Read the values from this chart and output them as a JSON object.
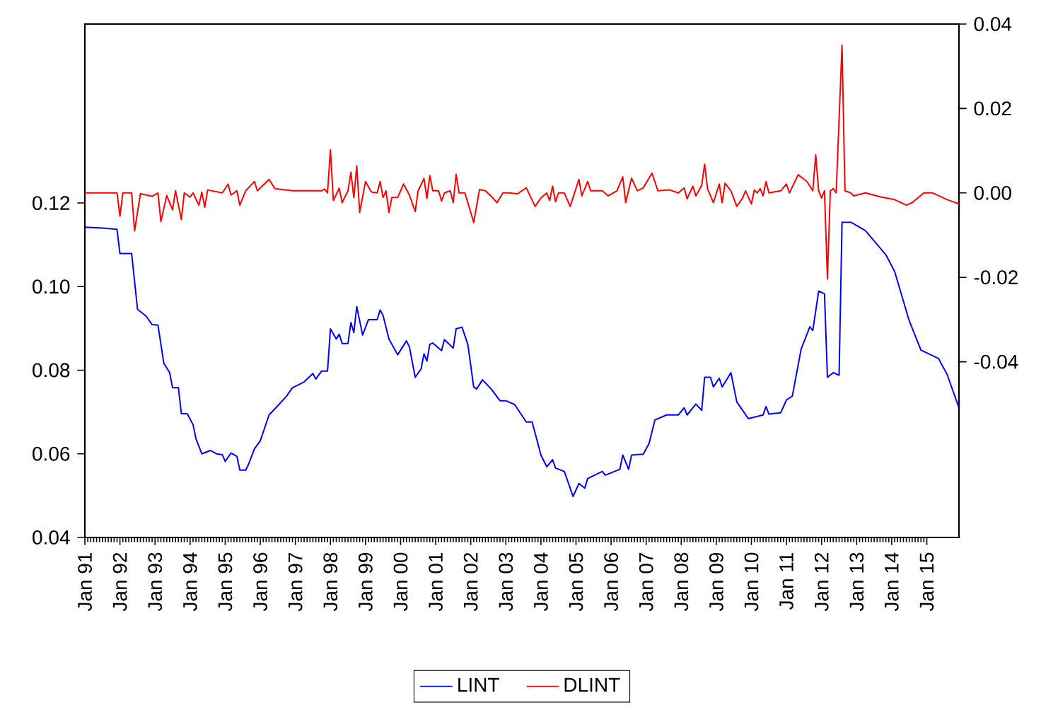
{
  "chart_data": {
    "type": "line",
    "xlim": [
      "1991-01",
      "2015-12"
    ],
    "xticks": [
      {
        "value": "1991-01",
        "label": "Jan 91"
      },
      {
        "value": "1992-01",
        "label": "Jan 92"
      },
      {
        "value": "1993-01",
        "label": "Jan 93"
      },
      {
        "value": "1994-01",
        "label": "Jan 94"
      },
      {
        "value": "1995-01",
        "label": "Jan 95"
      },
      {
        "value": "1996-01",
        "label": "Jan 96"
      },
      {
        "value": "1997-01",
        "label": "Jan 97"
      },
      {
        "value": "1998-01",
        "label": "Jan 98"
      },
      {
        "value": "1999-01",
        "label": "Jan 99"
      },
      {
        "value": "2000-01",
        "label": "Jan 00"
      },
      {
        "value": "2001-01",
        "label": "Jan 01"
      },
      {
        "value": "2002-01",
        "label": "Jan 02"
      },
      {
        "value": "2003-01",
        "label": "Jan 03"
      },
      {
        "value": "2004-01",
        "label": "Jan 04"
      },
      {
        "value": "2005-01",
        "label": "Jan 05"
      },
      {
        "value": "2006-01",
        "label": "Jan 06"
      },
      {
        "value": "2007-01",
        "label": "Jan 07"
      },
      {
        "value": "2008-01",
        "label": "Jan 08"
      },
      {
        "value": "2009-01",
        "label": "Jan 09"
      },
      {
        "value": "2010-01",
        "label": "Jan 10"
      },
      {
        "value": "2011-01",
        "label": "Jan 11"
      },
      {
        "value": "2012-01",
        "label": "Jan 12"
      },
      {
        "value": "2013-01",
        "label": "Jan 13"
      },
      {
        "value": "2014-01",
        "label": "Jan 14"
      },
      {
        "value": "2015-01",
        "label": "Jan 15"
      }
    ],
    "ylim": [
      0.04,
      0.1628
    ],
    "yticks": [
      {
        "value": 0.04,
        "label": "0.04"
      },
      {
        "value": 0.06,
        "label": "0.06"
      },
      {
        "value": 0.08,
        "label": "0.08"
      },
      {
        "value": 0.1,
        "label": "0.10"
      },
      {
        "value": 0.12,
        "label": "0.12"
      }
    ],
    "y2lim": [
      -0.0816,
      0.04
    ],
    "y2ticks": [
      {
        "value": -0.04,
        "label": "-0.04"
      },
      {
        "value": -0.02,
        "label": "-0.02"
      },
      {
        "value": 0,
        "label": "0.00"
      },
      {
        "value": 0.02,
        "label": "0.02"
      },
      {
        "value": 0.04,
        "label": "0.04"
      }
    ],
    "legend": "bottom",
    "series": [
      {
        "name": "LINT",
        "color": "#0000ff",
        "x": [
          "1991-01",
          "1991-07",
          "1991-12",
          "1992-01",
          "1992-05",
          "1992-07",
          "1992-10",
          "1992-12",
          "1993-02",
          "1993-04",
          "1993-06",
          "1993-07",
          "1993-09",
          "1993-10",
          "1993-12",
          "1994-02",
          "1994-03",
          "1994-05",
          "1994-08",
          "1994-10",
          "1994-12",
          "1995-01",
          "1995-03",
          "1995-05",
          "1995-06",
          "1995-08",
          "1995-09",
          "1995-11",
          "1996-01",
          "1996-04",
          "1996-07",
          "1996-10",
          "1996-12",
          "1997-04",
          "1997-07",
          "1997-08",
          "1997-10",
          "1997-12",
          "1998-01",
          "1998-03",
          "1998-04",
          "1998-05",
          "1998-07",
          "1998-08",
          "1998-09",
          "1998-10",
          "1998-12",
          "1999-02",
          "1999-05",
          "1999-06",
          "1999-07",
          "1999-09",
          "1999-12",
          "2000-03",
          "2000-04",
          "2000-06",
          "2000-08",
          "2000-09",
          "2000-10",
          "2000-11",
          "2000-12",
          "2001-03",
          "2001-04",
          "2001-07",
          "2001-08",
          "2001-10",
          "2001-12",
          "2002-02",
          "2002-03",
          "2002-05",
          "2002-08",
          "2002-11",
          "2003-01",
          "2003-02",
          "2003-04",
          "2003-08",
          "2003-10",
          "2004-01",
          "2004-03",
          "2004-05",
          "2004-06",
          "2004-09",
          "2004-12",
          "2005-02",
          "2005-04",
          "2005-05",
          "2005-10",
          "2005-11",
          "2006-04",
          "2006-05",
          "2006-07",
          "2006-08",
          "2006-12",
          "2007-02",
          "2007-04",
          "2007-08",
          "2007-12",
          "2008-02",
          "2008-03",
          "2008-06",
          "2008-08",
          "2008-09",
          "2008-11",
          "2008-12",
          "2009-02",
          "2009-03",
          "2009-06",
          "2009-08",
          "2009-12",
          "2010-05",
          "2010-06",
          "2010-07",
          "2010-11",
          "2011-01",
          "2011-03",
          "2011-06",
          "2011-09",
          "2011-10",
          "2011-12",
          "2012-02",
          "2012-03",
          "2012-05",
          "2012-07",
          "2012-08",
          "2012-11",
          "2013-04",
          "2013-11",
          "2014-02",
          "2014-07",
          "2014-11",
          "2015-05",
          "2015-08",
          "2015-12"
        ],
        "values": [
          0.1142,
          0.114,
          0.1137,
          0.1079,
          0.1079,
          0.0946,
          0.0929,
          0.0909,
          0.0908,
          0.0817,
          0.0794,
          0.0758,
          0.0758,
          0.0696,
          0.0696,
          0.067,
          0.0636,
          0.06,
          0.0608,
          0.06,
          0.0598,
          0.0582,
          0.0602,
          0.0594,
          0.0561,
          0.0561,
          0.0575,
          0.0612,
          0.0631,
          0.0693,
          0.0715,
          0.0738,
          0.0758,
          0.0772,
          0.0792,
          0.0779,
          0.0798,
          0.0798,
          0.0899,
          0.0875,
          0.0886,
          0.0864,
          0.0864,
          0.0914,
          0.089,
          0.0952,
          0.0884,
          0.0921,
          0.0921,
          0.0944,
          0.0931,
          0.0875,
          0.0837,
          0.087,
          0.0856,
          0.0783,
          0.0803,
          0.0839,
          0.0822,
          0.0862,
          0.0865,
          0.0847,
          0.0873,
          0.0853,
          0.0899,
          0.0903,
          0.0862,
          0.076,
          0.0755,
          0.0777,
          0.0755,
          0.0727,
          0.0727,
          0.0724,
          0.0718,
          0.0676,
          0.0676,
          0.0597,
          0.0569,
          0.0586,
          0.0566,
          0.0558,
          0.0498,
          0.0529,
          0.0518,
          0.0541,
          0.0558,
          0.0549,
          0.0563,
          0.0597,
          0.0563,
          0.0597,
          0.0599,
          0.0625,
          0.0681,
          0.0693,
          0.0693,
          0.071,
          0.0693,
          0.0719,
          0.0704,
          0.0783,
          0.0783,
          0.076,
          0.0781,
          0.076,
          0.0794,
          0.0724,
          0.0684,
          0.0693,
          0.0713,
          0.0695,
          0.0698,
          0.0729,
          0.0738,
          0.085,
          0.0904,
          0.0895,
          0.0989,
          0.0983,
          0.0783,
          0.0794,
          0.0788,
          0.1154,
          0.1154,
          0.1134,
          0.1076,
          0.1036,
          0.0918,
          0.0848,
          0.0828,
          0.0789,
          0.071
        ]
      },
      {
        "name": "DLINT",
        "color": "#ff0000",
        "axis": "y2",
        "x": [
          "1991-01",
          "1991-12",
          "1992-01",
          "1992-02",
          "1992-05",
          "1992-06",
          "1992-08",
          "1992-12",
          "1993-02",
          "1993-03",
          "1993-05",
          "1993-07",
          "1993-08",
          "1993-10",
          "1993-11",
          "1994-01",
          "1994-02",
          "1994-04",
          "1994-05",
          "1994-06",
          "1994-07",
          "1994-12",
          "1995-02",
          "1995-03",
          "1995-05",
          "1995-06",
          "1995-08",
          "1995-11",
          "1995-12",
          "1996-04",
          "1996-06",
          "1996-12",
          "1997-10",
          "1997-11",
          "1997-12",
          "1998-01",
          "1998-02",
          "1998-04",
          "1998-05",
          "1998-07",
          "1998-08",
          "1998-09",
          "1998-10",
          "1998-11",
          "1999-01",
          "1999-03",
          "1999-05",
          "1999-06",
          "1999-07",
          "1999-08",
          "1999-09",
          "1999-10",
          "1999-12",
          "2000-02",
          "2000-04",
          "2000-06",
          "2000-07",
          "2000-09",
          "2000-10",
          "2000-11",
          "2000-12",
          "2001-02",
          "2001-03",
          "2001-04",
          "2001-06",
          "2001-07",
          "2001-08",
          "2001-09",
          "2001-11",
          "2001-12",
          "2002-02",
          "2002-04",
          "2002-06",
          "2002-08",
          "2002-10",
          "2002-12",
          "2003-02",
          "2003-05",
          "2003-08",
          "2003-11",
          "2004-01",
          "2004-03",
          "2004-04",
          "2004-05",
          "2004-06",
          "2004-07",
          "2004-09",
          "2004-11",
          "2005-02",
          "2005-03",
          "2005-05",
          "2005-06",
          "2005-10",
          "2005-12",
          "2006-03",
          "2006-05",
          "2006-06",
          "2006-08",
          "2006-10",
          "2006-12",
          "2007-03",
          "2007-05",
          "2007-09",
          "2007-12",
          "2008-02",
          "2008-03",
          "2008-05",
          "2008-06",
          "2008-08",
          "2008-09",
          "2008-10",
          "2008-12",
          "2009-02",
          "2009-03",
          "2009-04",
          "2009-06",
          "2009-08",
          "2009-10",
          "2009-11",
          "2010-01",
          "2010-02",
          "2010-03",
          "2010-04",
          "2010-05",
          "2010-06",
          "2010-07",
          "2010-11",
          "2011-01",
          "2011-02",
          "2011-05",
          "2011-08",
          "2011-10",
          "2011-11",
          "2011-12",
          "2012-01",
          "2012-02",
          "2012-03",
          "2012-04",
          "2012-05",
          "2012-06",
          "2012-08",
          "2012-09",
          "2012-11",
          "2012-12",
          "2013-04",
          "2013-09",
          "2014-02",
          "2014-06",
          "2014-08",
          "2014-12",
          "2015-03",
          "2015-08",
          "2015-12"
        ],
        "values": [
          0.0,
          0.0,
          -0.0055,
          0.0,
          0.0,
          -0.009,
          -0.0002,
          -0.0008,
          0.0,
          -0.0068,
          -0.0006,
          -0.004,
          0.0005,
          -0.0063,
          0.0,
          -0.001,
          0.0,
          -0.0029,
          0.0002,
          -0.0034,
          0.0007,
          0.0,
          0.0021,
          -0.0005,
          0.0005,
          -0.0029,
          0.0005,
          0.0027,
          0.0005,
          0.0032,
          0.001,
          0.0005,
          0.0005,
          0.0009,
          0.0,
          0.0102,
          -0.0018,
          0.0011,
          -0.0023,
          0.0005,
          0.0049,
          -0.0011,
          0.0064,
          -0.0046,
          0.0027,
          0.0002,
          0.0,
          0.0027,
          -0.0011,
          0.0005,
          -0.0046,
          -0.0011,
          -0.0011,
          0.0021,
          -0.0005,
          -0.0044,
          0.0005,
          0.0034,
          -0.0013,
          0.0041,
          0.0005,
          0.0005,
          -0.0019,
          0.0,
          0.0005,
          -0.0023,
          0.0044,
          0.0,
          0.0,
          -0.0023,
          -0.007,
          0.0008,
          0.0005,
          -0.0008,
          -0.0023,
          0.0,
          0.0,
          -0.0002,
          0.0012,
          -0.0032,
          -0.0012,
          0.0,
          -0.0018,
          0.0016,
          -0.0021,
          0.0,
          0.0,
          -0.0032,
          0.0032,
          -0.0007,
          0.0027,
          0.0005,
          0.0005,
          -0.0007,
          0.0005,
          0.0038,
          -0.0023,
          0.0035,
          0.0005,
          0.0012,
          0.0047,
          0.0005,
          0.0007,
          0.0,
          0.0012,
          -0.0014,
          0.0016,
          -0.0007,
          0.0018,
          0.0068,
          0.001,
          -0.0023,
          0.0021,
          -0.0023,
          0.0023,
          0.0005,
          -0.0032,
          -0.0012,
          0.0005,
          -0.0026,
          0.0007,
          0.0,
          0.001,
          -0.0007,
          0.0027,
          0.0,
          0.0005,
          0.0021,
          0.0,
          0.0043,
          0.0027,
          0.0005,
          0.009,
          0.0005,
          -0.0012,
          0.0005,
          -0.0204,
          0.0005,
          0.001,
          0.0,
          0.035,
          0.0005,
          0.0,
          -0.0007,
          0.0,
          -0.0009,
          -0.0016,
          -0.0029,
          -0.0023,
          0.0,
          0.0,
          -0.0016,
          -0.0026
        ]
      }
    ]
  }
}
